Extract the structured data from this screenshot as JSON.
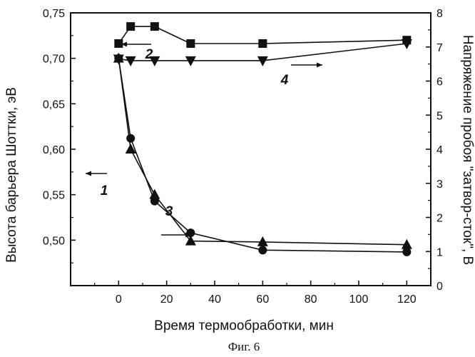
{
  "figure_caption": "Фиг. 6",
  "chart_data": {
    "type": "line",
    "xlabel": "Время термообработки, мин",
    "ylabel_left": "Высота барьера Шоттки, эВ",
    "ylabel_right": "Напряжение пробоя \"затвор-сток\", В",
    "xlim": [
      -20,
      130
    ],
    "ylim_left": [
      0.45,
      0.75
    ],
    "ylim_right": [
      0,
      8
    ],
    "x_ticks": [
      0,
      20,
      40,
      60,
      80,
      100,
      120
    ],
    "y_left_ticks": [
      "0,50",
      "0,55",
      "0,60",
      "0,65",
      "0,70",
      "0,75"
    ],
    "y_left_values": [
      0.5,
      0.55,
      0.6,
      0.65,
      0.7,
      0.75
    ],
    "y_right_ticks": [
      0,
      1,
      2,
      3,
      4,
      5,
      6,
      7,
      8
    ],
    "grid": false,
    "series": [
      {
        "name": "1",
        "axis": "left",
        "marker": "circle",
        "x": [
          0,
          5,
          15,
          30,
          60,
          120
        ],
        "y": [
          0.7,
          0.612,
          0.543,
          0.508,
          0.489,
          0.487
        ]
      },
      {
        "name": "2",
        "axis": "right",
        "marker": "square",
        "x": [
          0,
          5,
          15,
          30,
          60,
          120
        ],
        "y": [
          7.1,
          7.6,
          7.6,
          7.1,
          7.1,
          7.2
        ]
      },
      {
        "name": "3",
        "axis": "left",
        "marker": "triangle-up",
        "x": [
          0,
          5,
          15,
          30,
          60,
          120
        ],
        "y": [
          0.7,
          0.6,
          0.55,
          0.499,
          0.498,
          0.495
        ]
      },
      {
        "name": "4",
        "axis": "right",
        "marker": "triangle-down",
        "x": [
          0,
          5,
          15,
          30,
          60,
          120
        ],
        "y": [
          6.65,
          6.6,
          6.6,
          6.6,
          6.6,
          7.1
        ]
      }
    ]
  }
}
